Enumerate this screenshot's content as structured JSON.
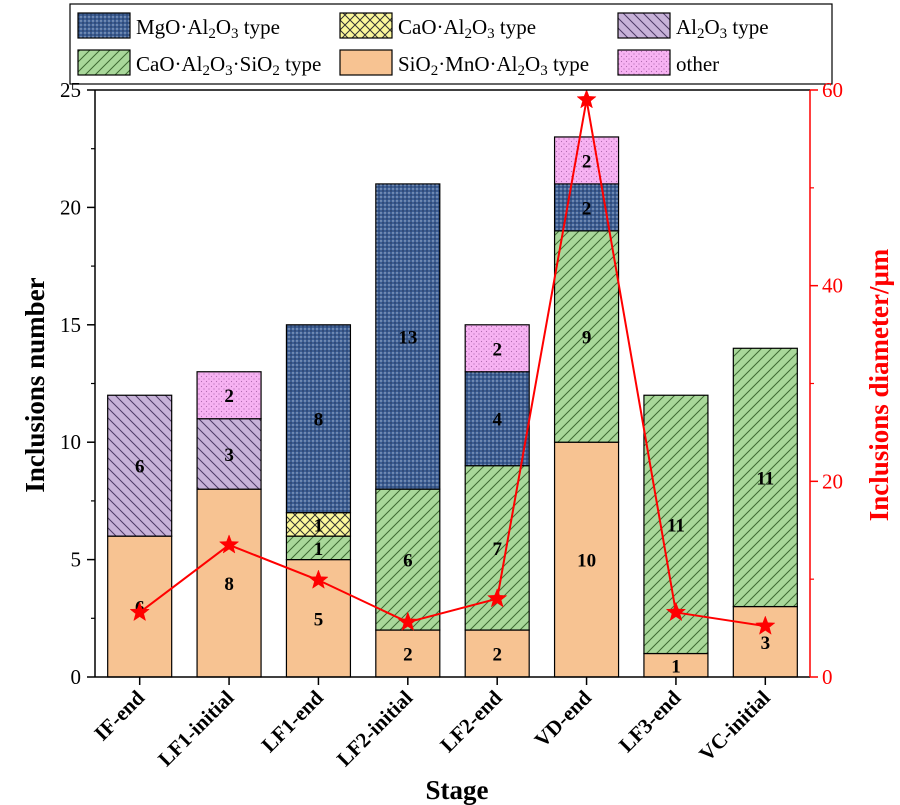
{
  "chart_data": {
    "type": "bar",
    "stacked": true,
    "xlabel": "Stage",
    "ylabel": "Inclusions number",
    "y2label": "Inclusions diameter/μm",
    "categories": [
      "IF-end",
      "LF1-initial",
      "LF1-end",
      "LF2-initial",
      "LF2-end",
      "VD-end",
      "LF3-end",
      "VC-initial"
    ],
    "ylim": [
      0,
      25
    ],
    "yticks": [
      "0",
      "5",
      "10",
      "15",
      "20",
      "25"
    ],
    "y2lim": [
      0,
      60
    ],
    "y2ticks": [
      "0",
      "20",
      "40",
      "60"
    ],
    "grid": false,
    "legend_position": "top",
    "series": [
      {
        "name": "SiO2·MnO·Al2O3 type",
        "legend_label": {
          "parts": [
            [
              "SiO",
              ""
            ],
            [
              "2",
              "sub"
            ],
            [
              "·MnO·Al",
              ""
            ],
            [
              "2",
              "sub"
            ],
            [
              "O",
              ""
            ],
            [
              "3",
              "sub"
            ],
            [
              " type",
              ""
            ]
          ]
        },
        "color": "#f7c392",
        "pattern": "none",
        "values": [
          6,
          8,
          5,
          2,
          2,
          10,
          1,
          3
        ],
        "labels": [
          "6",
          "8",
          "5",
          "2",
          "2",
          "10",
          "1",
          "3"
        ]
      },
      {
        "name": "CaO·Al2O3·SiO2 type",
        "legend_label": {
          "parts": [
            [
              "CaO·Al",
              ""
            ],
            [
              "2",
              "sub"
            ],
            [
              "O",
              ""
            ],
            [
              "3",
              "sub"
            ],
            [
              "·SiO",
              ""
            ],
            [
              "2",
              "sub"
            ],
            [
              " type",
              ""
            ]
          ]
        },
        "color": "#a9d89a",
        "pattern": "hatch-forward",
        "values": [
          0,
          0,
          1,
          6,
          7,
          9,
          11,
          11
        ],
        "labels": [
          "",
          "",
          "1",
          "6",
          "7",
          "9",
          "11",
          "11"
        ]
      },
      {
        "name": "CaO·Al2O3 type",
        "legend_label": {
          "parts": [
            [
              "CaO·Al",
              ""
            ],
            [
              "2",
              "sub"
            ],
            [
              "O",
              ""
            ],
            [
              "3",
              "sub"
            ],
            [
              " type",
              ""
            ]
          ]
        },
        "color": "#fbf79a",
        "pattern": "crosshatch",
        "values": [
          0,
          0,
          1,
          0,
          0,
          0,
          0,
          0
        ],
        "labels": [
          "",
          "",
          "1",
          "",
          "",
          "",
          "",
          ""
        ]
      },
      {
        "name": "Al2O3 type",
        "legend_label": {
          "parts": [
            [
              "Al",
              ""
            ],
            [
              "2",
              "sub"
            ],
            [
              "O",
              ""
            ],
            [
              "3",
              "sub"
            ],
            [
              " type",
              ""
            ]
          ]
        },
        "color": "#c7b2d8",
        "pattern": "hatch-back",
        "values": [
          6,
          3,
          0,
          0,
          0,
          0,
          0,
          0
        ],
        "labels": [
          "6",
          "3",
          "",
          "",
          "",
          "",
          "",
          ""
        ]
      },
      {
        "name": "MgO·Al2O3 type",
        "legend_label": {
          "parts": [
            [
              "MgO·Al",
              ""
            ],
            [
              "2",
              "sub"
            ],
            [
              "O",
              ""
            ],
            [
              "3",
              "sub"
            ],
            [
              " type",
              ""
            ]
          ]
        },
        "color": "#3d5e93",
        "pattern": "dots-dense",
        "values": [
          0,
          0,
          8,
          13,
          4,
          2,
          0,
          0
        ],
        "labels": [
          "",
          "",
          "8",
          "13",
          "4",
          "2",
          "",
          ""
        ]
      },
      {
        "name": "other",
        "legend_label": {
          "parts": [
            [
              "other",
              ""
            ]
          ]
        },
        "color": "#f7b2f2",
        "pattern": "dots",
        "values": [
          0,
          2,
          0,
          0,
          2,
          2,
          0,
          0
        ],
        "labels": [
          "",
          "2",
          "",
          "",
          "2",
          "2",
          "",
          ""
        ]
      }
    ],
    "legend_order": [
      "MgO·Al2O3 type",
      "CaO·Al2O3 type",
      "Al2O3 type",
      "CaO·Al2O3·SiO2 type",
      "SiO2·MnO·Al2O3 type",
      "other"
    ],
    "diameter_series": {
      "color": "#ff0000",
      "marker": "star",
      "axis": "right",
      "values": [
        6.6,
        13.5,
        9.9,
        5.6,
        8.0,
        59.0,
        6.6,
        5.2
      ]
    },
    "axis_color_right": "#ff0000"
  }
}
